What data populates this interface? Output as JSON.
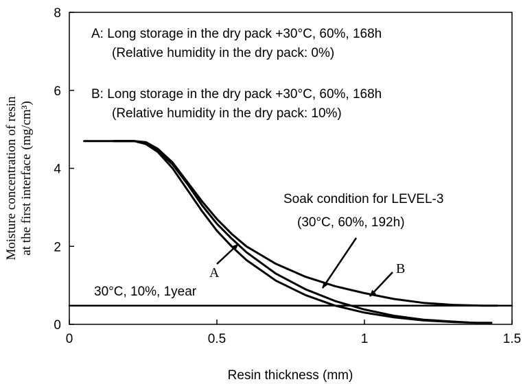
{
  "chart_data": {
    "type": "line",
    "xlabel": "Resin thickness (mm)",
    "ylabel_line1": "Moisture concentration of resin",
    "ylabel_line2": "at the first interface",
    "ylabel_unit": "(mg/cm³)",
    "xlim": [
      0,
      1.5
    ],
    "ylim": [
      0,
      8
    ],
    "x_ticks": [
      {
        "value": 0,
        "label": "0"
      },
      {
        "value": 0.5,
        "label": "0.5"
      },
      {
        "value": 1,
        "label": "1"
      },
      {
        "value": 1.5,
        "label": "1.5"
      }
    ],
    "y_ticks": [
      {
        "value": 0,
        "label": "0"
      },
      {
        "value": 2,
        "label": "2"
      },
      {
        "value": 4,
        "label": "4"
      },
      {
        "value": 6,
        "label": "6"
      },
      {
        "value": 8,
        "label": "8"
      }
    ],
    "grid": false,
    "series": [
      {
        "name": "A",
        "x": [
          0.15,
          0.22,
          0.26,
          0.3,
          0.35,
          0.4,
          0.45,
          0.5,
          0.55,
          0.6,
          0.7,
          0.8,
          0.9,
          1.0,
          1.1,
          1.2,
          1.3,
          1.38,
          1.43
        ],
        "y": [
          4.7,
          4.7,
          4.62,
          4.42,
          4.0,
          3.45,
          2.9,
          2.4,
          2.0,
          1.65,
          1.12,
          0.75,
          0.48,
          0.3,
          0.18,
          0.1,
          0.06,
          0.04,
          0.04
        ]
      },
      {
        "name": "Soak condition for LEVEL-3 (30°C, 60%, 192h)",
        "x": [
          0.15,
          0.22,
          0.26,
          0.3,
          0.35,
          0.4,
          0.45,
          0.5,
          0.55,
          0.6,
          0.7,
          0.8,
          0.9,
          1.0,
          1.1,
          1.2,
          1.3,
          1.35
        ],
        "y": [
          4.7,
          4.7,
          4.64,
          4.46,
          4.1,
          3.6,
          3.05,
          2.58,
          2.2,
          1.85,
          1.3,
          0.9,
          0.6,
          0.38,
          0.22,
          0.12,
          0.07,
          0.05
        ]
      },
      {
        "name": "B",
        "x": [
          0.05,
          0.15,
          0.22,
          0.26,
          0.3,
          0.35,
          0.4,
          0.45,
          0.5,
          0.55,
          0.6,
          0.7,
          0.8,
          0.9,
          1.0,
          1.1,
          1.2,
          1.3,
          1.4,
          1.45
        ],
        "y": [
          4.7,
          4.7,
          4.7,
          4.67,
          4.5,
          4.15,
          3.65,
          3.15,
          2.7,
          2.32,
          2.0,
          1.55,
          1.22,
          0.98,
          0.8,
          0.65,
          0.55,
          0.5,
          0.48,
          0.48
        ]
      },
      {
        "name": "30°C, 10%, 1year",
        "x": [
          0,
          1.5
        ],
        "y": [
          0.48,
          0.48
        ]
      }
    ],
    "annotations": {
      "A_line1": "A: Long storage in the dry pack +30°C, 60%, 168h",
      "A_line2": "(Relative humidity in the dry pack: 0%)",
      "B_line1": "B: Long storage in the dry pack +30°C, 60%, 168h",
      "B_line2": "(Relative humidity in the dry pack: 10%)",
      "soak_line1": "Soak condition for LEVEL-3",
      "soak_line2": "(30°C, 60%, 192h)",
      "baseline_label": "30°C, 10%, 1year",
      "label_A": "A",
      "label_B": "B"
    }
  }
}
